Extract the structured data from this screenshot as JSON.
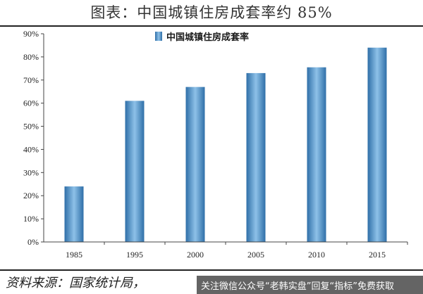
{
  "header": {
    "title": "图表：中国城镇住房成套率约 85%"
  },
  "footer": {
    "source": "资料来源：国家统计局，",
    "watermark": "关注微信公众号“老韩实盘”回复“指标”免费获取"
  },
  "colors": {
    "bar_dark": "#2f6fa8",
    "bar_light": "#8ec1e8",
    "axis": "#444444",
    "grid": "#9a9a9a"
  },
  "chart_data": {
    "type": "bar",
    "categories": [
      "1985",
      "1995",
      "2000",
      "2005",
      "2010",
      "2015"
    ],
    "series": [
      {
        "name": "中国城镇住房成套率",
        "values": [
          24,
          61,
          67,
          73,
          75.5,
          84
        ]
      }
    ],
    "yticks": [
      "0%",
      "10%",
      "20%",
      "30%",
      "40%",
      "50%",
      "60%",
      "70%",
      "80%",
      "90%"
    ],
    "ylim": [
      0,
      90
    ],
    "grid": false,
    "legend": "top-center"
  }
}
